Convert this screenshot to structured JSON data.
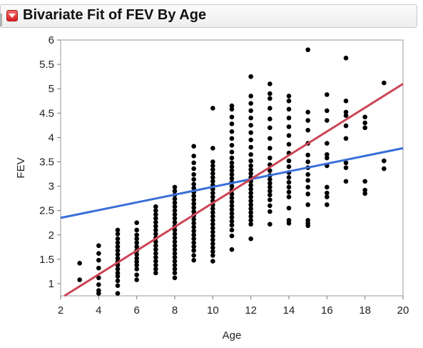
{
  "header": {
    "title": "Bivariate Fit of FEV By Age",
    "disclosure_icon": "red-dropdown-triangle-icon",
    "accent_color": "#d91f1f"
  },
  "chart_data": {
    "type": "scatter",
    "title": "",
    "xlabel": "Age",
    "ylabel": "FEV",
    "xlim": [
      2,
      20
    ],
    "ylim": [
      0.75,
      6
    ],
    "x_ticks": [
      2,
      4,
      6,
      8,
      10,
      12,
      14,
      16,
      18,
      20
    ],
    "y_ticks": [
      1,
      1.5,
      2,
      2.5,
      3,
      3.5,
      4,
      4.5,
      5,
      5.5,
      6
    ],
    "grid": false,
    "legend": "none",
    "point_color": "#000000",
    "series": [
      {
        "values": [
          [
            3,
            1.42
          ],
          [
            3,
            1.08
          ],
          [
            4,
            1.78
          ],
          [
            4,
            1.62
          ],
          [
            4,
            1.48
          ],
          [
            4,
            1.32
          ],
          [
            4,
            1.12
          ],
          [
            4,
            0.98
          ],
          [
            4,
            0.86
          ],
          [
            4,
            0.8
          ],
          [
            5,
            2.1
          ],
          [
            5,
            2.02
          ],
          [
            5,
            1.92
          ],
          [
            5,
            1.84
          ],
          [
            5,
            1.76
          ],
          [
            5,
            1.68
          ],
          [
            5,
            1.6
          ],
          [
            5,
            1.52
          ],
          [
            5,
            1.45
          ],
          [
            5,
            1.38
          ],
          [
            5,
            1.3
          ],
          [
            5,
            1.22
          ],
          [
            5,
            1.15
          ],
          [
            5,
            1.06
          ],
          [
            5,
            0.96
          ],
          [
            5,
            0.8
          ],
          [
            6,
            2.25
          ],
          [
            6,
            2.1
          ],
          [
            6,
            2.0
          ],
          [
            6,
            1.92
          ],
          [
            6,
            1.84
          ],
          [
            6,
            1.76
          ],
          [
            6,
            1.68
          ],
          [
            6,
            1.6
          ],
          [
            6,
            1.52
          ],
          [
            6,
            1.45
          ],
          [
            6,
            1.38
          ],
          [
            6,
            1.3
          ],
          [
            6,
            1.18
          ],
          [
            6,
            1.08
          ],
          [
            7,
            2.58
          ],
          [
            7,
            2.5
          ],
          [
            7,
            2.42
          ],
          [
            7,
            2.34
          ],
          [
            7,
            2.26
          ],
          [
            7,
            2.18
          ],
          [
            7,
            2.1
          ],
          [
            7,
            2.02
          ],
          [
            7,
            1.94
          ],
          [
            7,
            1.86
          ],
          [
            7,
            1.78
          ],
          [
            7,
            1.7
          ],
          [
            7,
            1.62
          ],
          [
            7,
            1.54
          ],
          [
            7,
            1.46
          ],
          [
            7,
            1.38
          ],
          [
            7,
            1.3
          ],
          [
            7,
            1.22
          ],
          [
            8,
            2.98
          ],
          [
            8,
            2.9
          ],
          [
            8,
            2.82
          ],
          [
            8,
            2.74
          ],
          [
            8,
            2.66
          ],
          [
            8,
            2.58
          ],
          [
            8,
            2.5
          ],
          [
            8,
            2.42
          ],
          [
            8,
            2.34
          ],
          [
            8,
            2.26
          ],
          [
            8,
            2.18
          ],
          [
            8,
            2.1
          ],
          [
            8,
            2.02
          ],
          [
            8,
            1.94
          ],
          [
            8,
            1.86
          ],
          [
            8,
            1.78
          ],
          [
            8,
            1.7
          ],
          [
            8,
            1.62
          ],
          [
            8,
            1.54
          ],
          [
            8,
            1.46
          ],
          [
            8,
            1.38
          ],
          [
            8,
            1.3
          ],
          [
            8,
            1.22
          ],
          [
            8,
            1.12
          ],
          [
            9,
            3.82
          ],
          [
            9,
            3.62
          ],
          [
            9,
            3.48
          ],
          [
            9,
            3.36
          ],
          [
            9,
            3.24
          ],
          [
            9,
            3.14
          ],
          [
            9,
            3.04
          ],
          [
            9,
            2.96
          ],
          [
            9,
            2.88
          ],
          [
            9,
            2.8
          ],
          [
            9,
            2.72
          ],
          [
            9,
            2.64
          ],
          [
            9,
            2.56
          ],
          [
            9,
            2.48
          ],
          [
            9,
            2.4
          ],
          [
            9,
            2.32
          ],
          [
            9,
            2.24
          ],
          [
            9,
            2.16
          ],
          [
            9,
            2.08
          ],
          [
            9,
            2.0
          ],
          [
            9,
            1.92
          ],
          [
            9,
            1.84
          ],
          [
            9,
            1.76
          ],
          [
            9,
            1.68
          ],
          [
            9,
            1.58
          ],
          [
            9,
            1.48
          ],
          [
            10,
            4.6
          ],
          [
            10,
            3.78
          ],
          [
            10,
            3.5
          ],
          [
            10,
            3.42
          ],
          [
            10,
            3.34
          ],
          [
            10,
            3.26
          ],
          [
            10,
            3.18
          ],
          [
            10,
            3.1
          ],
          [
            10,
            3.02
          ],
          [
            10,
            2.94
          ],
          [
            10,
            2.86
          ],
          [
            10,
            2.78
          ],
          [
            10,
            2.7
          ],
          [
            10,
            2.62
          ],
          [
            10,
            2.54
          ],
          [
            10,
            2.46
          ],
          [
            10,
            2.38
          ],
          [
            10,
            2.3
          ],
          [
            10,
            2.22
          ],
          [
            10,
            2.14
          ],
          [
            10,
            2.06
          ],
          [
            10,
            1.98
          ],
          [
            10,
            1.9
          ],
          [
            10,
            1.82
          ],
          [
            10,
            1.74
          ],
          [
            10,
            1.66
          ],
          [
            10,
            1.58
          ],
          [
            10,
            1.46
          ],
          [
            11,
            4.65
          ],
          [
            11,
            4.58
          ],
          [
            11,
            4.42
          ],
          [
            11,
            4.28
          ],
          [
            11,
            4.12
          ],
          [
            11,
            3.98
          ],
          [
            11,
            3.84
          ],
          [
            11,
            3.7
          ],
          [
            11,
            3.58
          ],
          [
            11,
            3.48
          ],
          [
            11,
            3.4
          ],
          [
            11,
            3.32
          ],
          [
            11,
            3.24
          ],
          [
            11,
            3.16
          ],
          [
            11,
            3.08
          ],
          [
            11,
            3.0
          ],
          [
            11,
            2.92
          ],
          [
            11,
            2.84
          ],
          [
            11,
            2.76
          ],
          [
            11,
            2.68
          ],
          [
            11,
            2.6
          ],
          [
            11,
            2.52
          ],
          [
            11,
            2.44
          ],
          [
            11,
            2.36
          ],
          [
            11,
            2.28
          ],
          [
            11,
            2.2
          ],
          [
            11,
            2.1
          ],
          [
            11,
            1.98
          ],
          [
            11,
            1.7
          ],
          [
            12,
            5.25
          ],
          [
            12,
            4.85
          ],
          [
            12,
            4.7
          ],
          [
            12,
            4.55
          ],
          [
            12,
            4.4
          ],
          [
            12,
            4.25
          ],
          [
            12,
            4.1
          ],
          [
            12,
            3.95
          ],
          [
            12,
            3.8
          ],
          [
            12,
            3.65
          ],
          [
            12,
            3.52
          ],
          [
            12,
            3.42
          ],
          [
            12,
            3.34
          ],
          [
            12,
            3.26
          ],
          [
            12,
            3.18
          ],
          [
            12,
            3.1
          ],
          [
            12,
            3.02
          ],
          [
            12,
            2.94
          ],
          [
            12,
            2.86
          ],
          [
            12,
            2.78
          ],
          [
            12,
            2.7
          ],
          [
            12,
            2.62
          ],
          [
            12,
            2.54
          ],
          [
            12,
            2.46
          ],
          [
            12,
            2.38
          ],
          [
            12,
            2.3
          ],
          [
            12,
            2.22
          ],
          [
            12,
            1.92
          ],
          [
            13,
            5.1
          ],
          [
            13,
            4.9
          ],
          [
            13,
            4.8
          ],
          [
            13,
            4.6
          ],
          [
            13,
            4.38
          ],
          [
            13,
            4.2
          ],
          [
            13,
            3.98
          ],
          [
            13,
            3.78
          ],
          [
            13,
            3.58
          ],
          [
            13,
            3.44
          ],
          [
            13,
            3.32
          ],
          [
            13,
            3.22
          ],
          [
            13,
            3.14
          ],
          [
            13,
            3.06
          ],
          [
            13,
            2.98
          ],
          [
            13,
            2.9
          ],
          [
            13,
            2.82
          ],
          [
            13,
            2.72
          ],
          [
            13,
            2.6
          ],
          [
            13,
            2.48
          ],
          [
            13,
            2.22
          ],
          [
            14,
            4.85
          ],
          [
            14,
            4.75
          ],
          [
            14,
            4.58
          ],
          [
            14,
            4.4
          ],
          [
            14,
            4.22
          ],
          [
            14,
            4.04
          ],
          [
            14,
            3.86
          ],
          [
            14,
            3.68
          ],
          [
            14,
            3.52
          ],
          [
            14,
            3.4
          ],
          [
            14,
            3.28
          ],
          [
            14,
            3.18
          ],
          [
            14,
            3.08
          ],
          [
            14,
            2.98
          ],
          [
            14,
            2.88
          ],
          [
            14,
            2.78
          ],
          [
            14,
            2.55
          ],
          [
            14,
            2.3
          ],
          [
            14,
            2.24
          ],
          [
            15,
            5.8
          ],
          [
            15,
            4.52
          ],
          [
            15,
            4.35
          ],
          [
            15,
            4.15
          ],
          [
            15,
            3.88
          ],
          [
            15,
            3.64
          ],
          [
            15,
            3.5
          ],
          [
            15,
            3.38
          ],
          [
            15,
            3.24
          ],
          [
            15,
            3.12
          ],
          [
            15,
            2.98
          ],
          [
            15,
            2.84
          ],
          [
            15,
            2.62
          ],
          [
            15,
            2.3
          ],
          [
            15,
            2.24
          ],
          [
            15,
            2.19
          ],
          [
            16,
            4.88
          ],
          [
            16,
            4.55
          ],
          [
            16,
            4.35
          ],
          [
            16,
            3.88
          ],
          [
            16,
            3.65
          ],
          [
            16,
            3.58
          ],
          [
            16,
            3.42
          ],
          [
            16,
            2.98
          ],
          [
            16,
            2.86
          ],
          [
            16,
            2.78
          ],
          [
            16,
            2.62
          ],
          [
            17,
            5.63
          ],
          [
            17,
            4.75
          ],
          [
            17,
            4.52
          ],
          [
            17,
            4.45
          ],
          [
            17,
            4.24
          ],
          [
            17,
            3.98
          ],
          [
            17,
            3.48
          ],
          [
            17,
            3.38
          ],
          [
            17,
            3.1
          ],
          [
            18,
            4.42
          ],
          [
            18,
            4.3
          ],
          [
            18,
            4.2
          ],
          [
            18,
            3.1
          ],
          [
            18,
            2.92
          ],
          [
            18,
            2.85
          ],
          [
            19,
            5.12
          ],
          [
            19,
            3.52
          ],
          [
            19,
            3.36
          ]
        ]
      }
    ],
    "fit_lines": [
      {
        "color": "#3a6fd8",
        "from": [
          2,
          2.35
        ],
        "to": [
          20,
          3.78
        ]
      },
      {
        "color": "#cc4455",
        "from": [
          2.2,
          0.75
        ],
        "to": [
          20,
          5.1
        ]
      }
    ]
  }
}
